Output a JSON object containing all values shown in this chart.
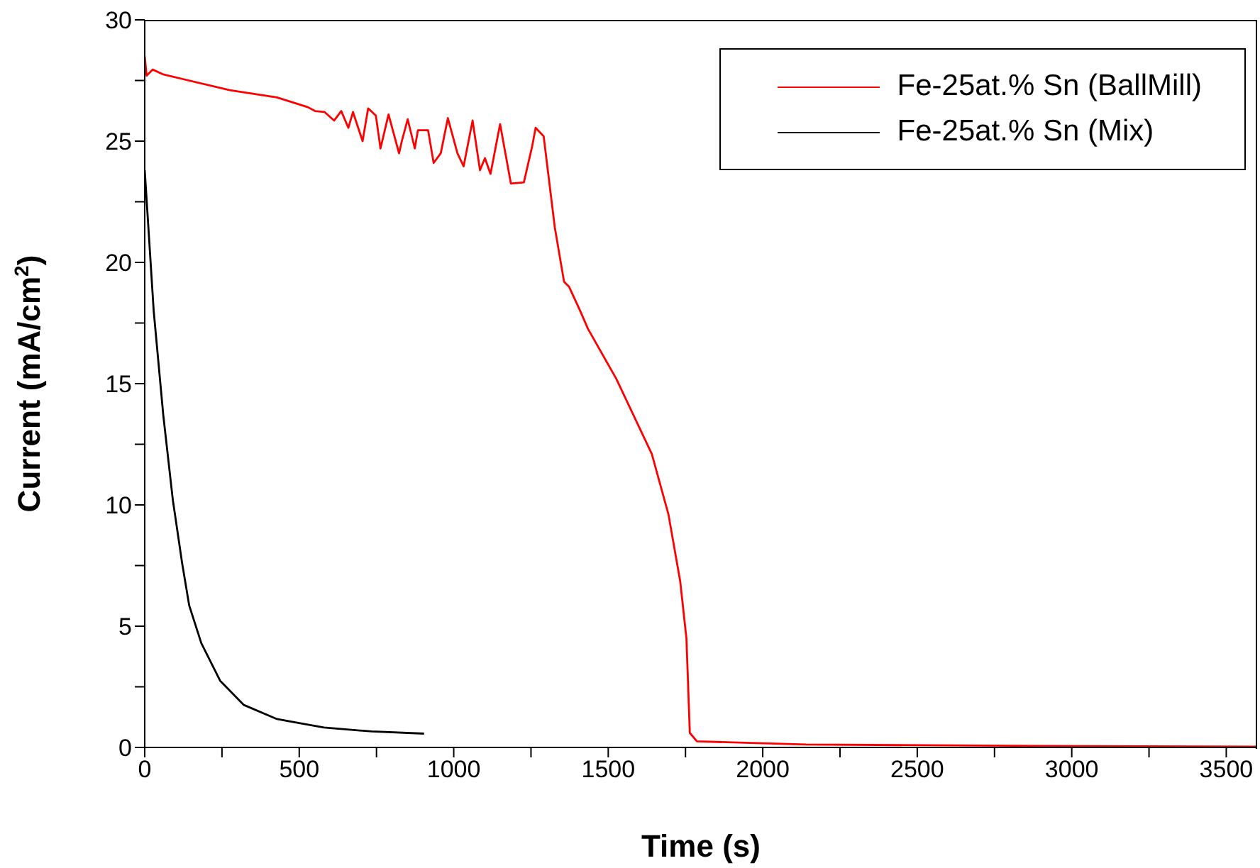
{
  "chart_data": {
    "type": "line",
    "xlabel": "Time (s)",
    "ylabel": "Current (mA/cm$^{2}$)",
    "xlim": [
      0,
      3600
    ],
    "ylim": [
      0,
      30
    ],
    "xticks": [
      0,
      {
        "value": 250,
        "label": null
      },
      500,
      {
        "value": 750,
        "label": null
      },
      1000,
      {
        "value": 1250,
        "label": null
      },
      1500,
      {
        "value": 1750,
        "label": null
      },
      2000,
      {
        "value": 2250,
        "label": null
      },
      2500,
      {
        "value": 2750,
        "label": null
      },
      3000,
      {
        "value": 3250,
        "label": null
      },
      3500
    ],
    "yticks": [
      0,
      {
        "value": 2.5,
        "label": null
      },
      5,
      {
        "value": 7.5,
        "label": null
      },
      10,
      {
        "value": 12.5,
        "label": null
      },
      15,
      {
        "value": 17.5,
        "label": null
      },
      20,
      {
        "value": 22.5,
        "label": null
      },
      25,
      {
        "value": 27.5,
        "label": null
      },
      30
    ],
    "legend": "top right",
    "marker": "none",
    "line_style": "solid",
    "series": [
      {
        "name": "Fe-25at.% Sn (BallMill)",
        "color": "#ff0000",
        "x": [
          0,
          6,
          26,
          60,
          275,
          428,
          528,
          551,
          582,
          613,
          636,
          659,
          674,
          705,
          723,
          748,
          763,
          789,
          823,
          832,
          851,
          874,
          884,
          917,
          935,
          958,
          981,
          1012,
          1032,
          1061,
          1085,
          1101,
          1119,
          1150,
          1185,
          1227,
          1254,
          1265,
          1291,
          1327,
          1357,
          1373,
          1411,
          1434,
          1526,
          1641,
          1695,
          1733,
          1753,
          1764,
          1787,
          2140,
          2906,
          3600
        ],
        "values": [
          28.5,
          27.7,
          27.95,
          27.75,
          27.1,
          26.8,
          26.4,
          26.24,
          26.2,
          25.85,
          26.24,
          25.55,
          26.2,
          25.0,
          26.35,
          26.05,
          24.7,
          26.1,
          24.5,
          25.0,
          25.9,
          24.7,
          25.45,
          25.45,
          24.1,
          24.5,
          25.95,
          24.5,
          23.96,
          25.85,
          23.8,
          24.3,
          23.65,
          25.7,
          23.25,
          23.3,
          24.8,
          25.55,
          25.2,
          21.45,
          19.2,
          19.0,
          17.95,
          17.27,
          15.2,
          12.1,
          9.6,
          6.84,
          4.5,
          0.6,
          0.25,
          0.12,
          0.06,
          0.03
        ]
      },
      {
        "name": "Fe-25at.% Sn (Mix)",
        "color": "#000000",
        "x": [
          0,
          29,
          60,
          91,
          121,
          144,
          183,
          244,
          321,
          428,
          580,
          735,
          904
        ],
        "values": [
          23.8,
          18.0,
          13.7,
          10.2,
          7.6,
          5.85,
          4.3,
          2.75,
          1.75,
          1.17,
          0.82,
          0.66,
          0.57
        ]
      }
    ]
  }
}
